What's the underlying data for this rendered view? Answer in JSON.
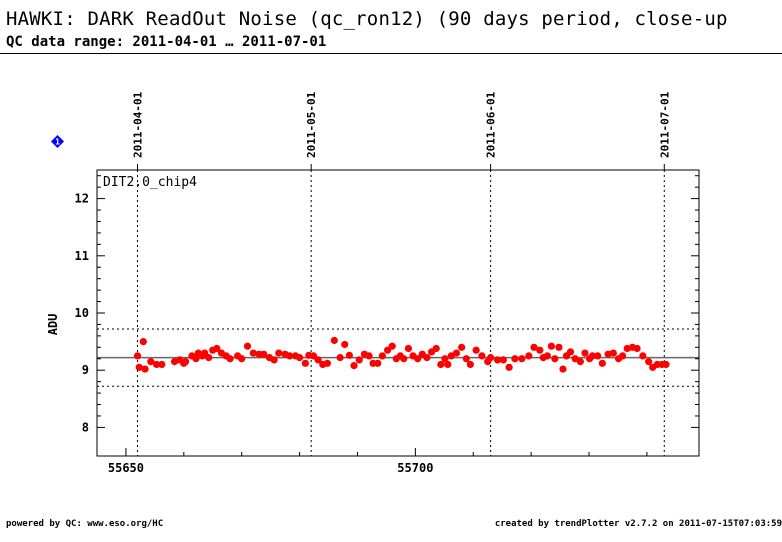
{
  "header": {
    "title": "HAWKI: DARK ReadOut Noise (qc_ron12) (90 days period, close-up",
    "subtitle": "QC data range: 2011-04-01 … 2011-07-01"
  },
  "footer": {
    "left": "powered by QC: www.eso.org/HC",
    "right": "created by trendPlotter v2.7.2 on 2011-07-15T07:03:59"
  },
  "marker": {
    "label": "1",
    "color": "#0000ff"
  },
  "chart_data": {
    "type": "scatter",
    "panel_label": "DIT2.0_chip4",
    "ylabel": "ADU",
    "xlim": [
      55645,
      55749
    ],
    "ylim": [
      7.5,
      12.5
    ],
    "x_ticks": [
      55650,
      55700
    ],
    "y_ticks": [
      8,
      9,
      10,
      11,
      12
    ],
    "date_ticks": [
      {
        "x": 55652,
        "label": "2011-04-01"
      },
      {
        "x": 55682,
        "label": "2011-05-01"
      },
      {
        "x": 55713,
        "label": "2011-06-01"
      },
      {
        "x": 55743,
        "label": "2011-07-01"
      }
    ],
    "reference_line": 9.22,
    "limit_lines": [
      8.72,
      9.72
    ],
    "point_color": "#ff0000",
    "x": [
      55652,
      55652.3,
      55653,
      55653.3,
      55654.3,
      55655.3,
      55656.2,
      55658.4,
      55659.3,
      55660,
      55660.3,
      55661.4,
      55662.1,
      55662.5,
      55663.2,
      55663.6,
      55664.3,
      55665,
      55665.7,
      55666.5,
      55667.3,
      55668,
      55669.3,
      55670,
      55671,
      55672,
      55673,
      55673.8,
      55674.8,
      55675.6,
      55676.4,
      55677.5,
      55678.3,
      55679.3,
      55680,
      55681,
      55681.6,
      55682.4,
      55683.2,
      55684,
      55684.8,
      55686,
      55687,
      55687.8,
      55688.6,
      55689.4,
      55690.3,
      55691.2,
      55692,
      55692.7,
      55693.5,
      55694.3,
      55695.2,
      55696,
      55696.7,
      55697.4,
      55698,
      55698.8,
      55699.6,
      55700.4,
      55701.2,
      55702,
      55702.8,
      55703.6,
      55704.4,
      55705.1,
      55705.6,
      55706.2,
      55707.1,
      55708,
      55708.8,
      55709.5,
      55710.5,
      55711.5,
      55712.5,
      55713,
      55714.2,
      55715.2,
      55716.2,
      55717.2,
      55718.4,
      55719.6,
      55720.5,
      55721.5,
      55722.1,
      55722.8,
      55723.5,
      55724.1,
      55724.8,
      55725.5,
      55726.1,
      55726.8,
      55727.6,
      55728.5,
      55729.3,
      55730.1,
      55730.6,
      55731.5,
      55732.3,
      55733.3,
      55734.2,
      55735.1,
      55735.8,
      55736.6,
      55737.5,
      55738.3,
      55739.3,
      55740.3,
      55741,
      55741.8,
      55742.6,
      55743.3
    ],
    "y": [
      9.25,
      9.05,
      9.5,
      9.02,
      9.15,
      9.1,
      9.1,
      9.15,
      9.18,
      9.12,
      9.15,
      9.25,
      9.2,
      9.3,
      9.25,
      9.3,
      9.22,
      9.35,
      9.38,
      9.3,
      9.25,
      9.2,
      9.25,
      9.2,
      9.42,
      9.3,
      9.28,
      9.28,
      9.22,
      9.18,
      9.3,
      9.28,
      9.25,
      9.25,
      9.22,
      9.12,
      9.26,
      9.25,
      9.18,
      9.1,
      9.12,
      9.52,
      9.22,
      9.45,
      9.26,
      9.08,
      9.18,
      9.28,
      9.25,
      9.12,
      9.12,
      9.25,
      9.35,
      9.42,
      9.2,
      9.25,
      9.2,
      9.38,
      9.25,
      9.2,
      9.28,
      9.22,
      9.32,
      9.38,
      9.1,
      9.2,
      9.1,
      9.25,
      9.3,
      9.4,
      9.2,
      9.1,
      9.35,
      9.25,
      9.15,
      9.22,
      9.18,
      9.18,
      9.05,
      9.2,
      9.2,
      9.25,
      9.4,
      9.35,
      9.22,
      9.25,
      9.42,
      9.2,
      9.4,
      9.02,
      9.25,
      9.32,
      9.2,
      9.15,
      9.3,
      9.2,
      9.25,
      9.25,
      9.12,
      9.28,
      9.3,
      9.2,
      9.25,
      9.38,
      9.4,
      9.38,
      9.25,
      9.15,
      9.05,
      9.1,
      9.1,
      9.1
    ]
  }
}
